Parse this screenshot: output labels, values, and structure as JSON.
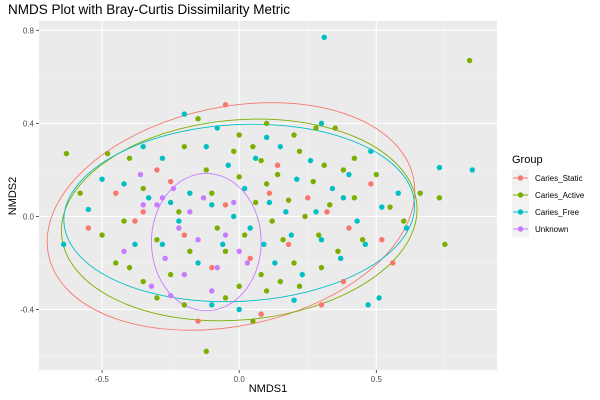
{
  "chart_data": {
    "type": "scatter",
    "title": "NMDS Plot with Bray-Curtis Dissimilarity Metric",
    "xlabel": "NMDS1",
    "ylabel": "NMDS2",
    "xlim": [
      -0.73,
      0.94
    ],
    "ylim": [
      -0.66,
      0.84
    ],
    "x_ticks": [
      -0.5,
      0.0,
      0.5
    ],
    "x_tick_labels": [
      "-0.5",
      "0.0",
      "0.5"
    ],
    "y_ticks": [
      -0.4,
      0.0,
      0.4,
      0.8
    ],
    "y_tick_labels": [
      "-0.4",
      "0.0",
      "0.4",
      "0.8"
    ],
    "grid": true,
    "legend": {
      "title": "Group",
      "position": "right",
      "entries": [
        "Caries_Static",
        "Caries_Active",
        "Caries_Free",
        "Unknown"
      ]
    },
    "series": [
      {
        "name": "Caries_Static",
        "color": "#F8766D",
        "points": [
          [
            -0.45,
            0.1
          ],
          [
            -0.35,
            0.02
          ],
          [
            -0.38,
            -0.02
          ],
          [
            -0.25,
            0.15
          ],
          [
            -0.2,
            -0.08
          ],
          [
            -0.1,
            -0.22
          ],
          [
            -0.05,
            0.05
          ],
          [
            0.04,
            -0.18
          ],
          [
            0.11,
            0.1
          ],
          [
            0.18,
            -0.12
          ],
          [
            0.25,
            0.08
          ],
          [
            0.32,
            0.02
          ],
          [
            0.4,
            -0.05
          ],
          [
            0.48,
            0.14
          ],
          [
            0.52,
            -0.1
          ],
          [
            0.56,
            -0.2
          ],
          [
            0.38,
            -0.28
          ],
          [
            -0.15,
            -0.45
          ],
          [
            0.08,
            -0.42
          ],
          [
            -0.05,
            0.48
          ],
          [
            0.3,
            -0.38
          ],
          [
            -0.55,
            -0.05
          ],
          [
            0.14,
            0.22
          ],
          [
            -0.3,
            0.2
          ]
        ]
      },
      {
        "name": "Caries_Active",
        "color": "#7CAE00",
        "points": [
          [
            -0.63,
            0.27
          ],
          [
            -0.48,
            0.27
          ],
          [
            -0.4,
            0.25
          ],
          [
            -0.35,
            0.12
          ],
          [
            -0.42,
            -0.02
          ],
          [
            -0.5,
            -0.08
          ],
          [
            -0.58,
            0.1
          ],
          [
            -0.3,
            -0.1
          ],
          [
            -0.2,
            0.3
          ],
          [
            -0.22,
            0.02
          ],
          [
            -0.15,
            0.42
          ],
          [
            -0.12,
            0.2
          ],
          [
            -0.1,
            0.1
          ],
          [
            -0.08,
            -0.05
          ],
          [
            -0.05,
            -0.15
          ],
          [
            -0.02,
            0.28
          ],
          [
            0.0,
            0.17
          ],
          [
            0.02,
            -0.08
          ],
          [
            0.05,
            0.3
          ],
          [
            0.06,
            0.06
          ],
          [
            0.08,
            -0.25
          ],
          [
            0.1,
            0.14
          ],
          [
            0.12,
            -0.02
          ],
          [
            0.14,
            0.18
          ],
          [
            0.16,
            -0.1
          ],
          [
            0.18,
            0.07
          ],
          [
            0.2,
            -0.2
          ],
          [
            0.22,
            0.28
          ],
          [
            0.24,
            0.0
          ],
          [
            0.27,
            0.15
          ],
          [
            0.29,
            -0.08
          ],
          [
            0.31,
            0.22
          ],
          [
            0.33,
            0.05
          ],
          [
            0.36,
            -0.15
          ],
          [
            0.38,
            0.2
          ],
          [
            0.42,
            0.08
          ],
          [
            0.45,
            -0.1
          ],
          [
            0.5,
            0.18
          ],
          [
            0.55,
            0.04
          ],
          [
            0.6,
            -0.02
          ],
          [
            0.66,
            0.1
          ],
          [
            0.73,
            0.08
          ],
          [
            0.75,
            -0.12
          ],
          [
            0.84,
            0.67
          ],
          [
            -0.25,
            -0.25
          ],
          [
            -0.3,
            -0.35
          ],
          [
            -0.2,
            -0.38
          ],
          [
            -0.12,
            -0.58
          ],
          [
            -0.05,
            -0.35
          ],
          [
            0.0,
            -0.3
          ],
          [
            0.05,
            -0.45
          ],
          [
            0.1,
            -0.32
          ],
          [
            0.15,
            -0.28
          ],
          [
            0.22,
            -0.3
          ],
          [
            0.3,
            -0.22
          ],
          [
            0.35,
            0.38
          ],
          [
            0.28,
            0.38
          ],
          [
            -0.4,
            -0.22
          ],
          [
            -0.45,
            -0.2
          ],
          [
            -0.35,
            -0.28
          ],
          [
            0.1,
            0.4
          ],
          [
            0.2,
            0.35
          ],
          [
            0.0,
            0.35
          ],
          [
            -0.18,
            -0.15
          ],
          [
            0.08,
            0.24
          ],
          [
            0.42,
            0.25
          ]
        ]
      },
      {
        "name": "Caries_Free",
        "color": "#00BFC4",
        "points": [
          [
            -0.64,
            -0.12
          ],
          [
            -0.55,
            0.03
          ],
          [
            -0.5,
            0.16
          ],
          [
            -0.42,
            0.14
          ],
          [
            -0.38,
            -0.12
          ],
          [
            -0.33,
            0.08
          ],
          [
            -0.28,
            0.25
          ],
          [
            -0.22,
            -0.02
          ],
          [
            -0.2,
            0.44
          ],
          [
            -0.18,
            0.1
          ],
          [
            -0.15,
            -0.2
          ],
          [
            -0.12,
            0.3
          ],
          [
            -0.1,
            0.05
          ],
          [
            -0.06,
            -0.12
          ],
          [
            -0.04,
            0.22
          ],
          [
            -0.02,
            0.0
          ],
          [
            0.02,
            0.12
          ],
          [
            0.04,
            -0.05
          ],
          [
            0.06,
            0.25
          ],
          [
            0.09,
            -0.12
          ],
          [
            0.11,
            0.06
          ],
          [
            0.13,
            -0.2
          ],
          [
            0.15,
            0.3
          ],
          [
            0.17,
            0.02
          ],
          [
            0.19,
            -0.08
          ],
          [
            0.21,
            0.16
          ],
          [
            0.23,
            -0.25
          ],
          [
            0.26,
            0.24
          ],
          [
            0.28,
            0.02
          ],
          [
            0.3,
            -0.1
          ],
          [
            0.31,
            0.77
          ],
          [
            0.34,
            0.12
          ],
          [
            0.37,
            -0.18
          ],
          [
            0.4,
            0.18
          ],
          [
            0.43,
            -0.02
          ],
          [
            0.46,
            -0.12
          ],
          [
            0.48,
            0.28
          ],
          [
            0.52,
            0.04
          ],
          [
            0.58,
            0.1
          ],
          [
            0.61,
            -0.05
          ],
          [
            0.73,
            0.21
          ],
          [
            0.85,
            0.2
          ],
          [
            0.51,
            -0.35
          ],
          [
            0.47,
            -0.38
          ],
          [
            0.3,
            0.4
          ],
          [
            -0.1,
            -0.38
          ],
          [
            0.0,
            -0.4
          ],
          [
            -0.28,
            -0.12
          ],
          [
            -0.35,
            0.3
          ],
          [
            0.1,
            0.34
          ],
          [
            0.2,
            -0.36
          ],
          [
            -0.08,
            0.38
          ],
          [
            0.38,
            0.08
          ],
          [
            -0.25,
            0.06
          ]
        ]
      },
      {
        "name": "Unknown",
        "color": "#C77CFF",
        "points": [
          [
            -0.42,
            -0.15
          ],
          [
            -0.36,
            0.18
          ],
          [
            -0.32,
            -0.3
          ],
          [
            -0.3,
            0.05
          ],
          [
            -0.27,
            -0.18
          ],
          [
            -0.24,
            0.12
          ],
          [
            -0.22,
            -0.05
          ],
          [
            -0.2,
            -0.25
          ],
          [
            -0.18,
            0.02
          ],
          [
            -0.15,
            -0.1
          ],
          [
            -0.13,
            0.08
          ],
          [
            -0.1,
            -0.32
          ],
          [
            -0.08,
            -0.22
          ],
          [
            -0.05,
            -0.08
          ],
          [
            -0.02,
            0.06
          ],
          [
            0.0,
            -0.15
          ],
          [
            0.03,
            -0.2
          ],
          [
            -0.25,
            -0.34
          ],
          [
            -0.28,
            0.08
          ],
          [
            -0.35,
            0.05
          ]
        ]
      }
    ],
    "ellipses": [
      {
        "series": "Caries_Static",
        "color": "#F8766D",
        "cx": -0.03,
        "cy": 0.0,
        "rx": 0.68,
        "ry": 0.47,
        "angle_deg": -12
      },
      {
        "series": "Caries_Active",
        "color": "#7CAE00",
        "cx": 0.0,
        "cy": -0.015,
        "rx": 0.65,
        "ry": 0.43,
        "angle_deg": -5
      },
      {
        "series": "Caries_Free",
        "color": "#00BFC4",
        "cx": 0.0,
        "cy": 0.015,
        "rx": 0.64,
        "ry": 0.38,
        "angle_deg": -3
      },
      {
        "series": "Unknown",
        "color": "#C77CFF",
        "cx": -0.12,
        "cy": -0.11,
        "rx": 0.2,
        "ry": 0.295,
        "angle_deg": 0
      }
    ]
  }
}
